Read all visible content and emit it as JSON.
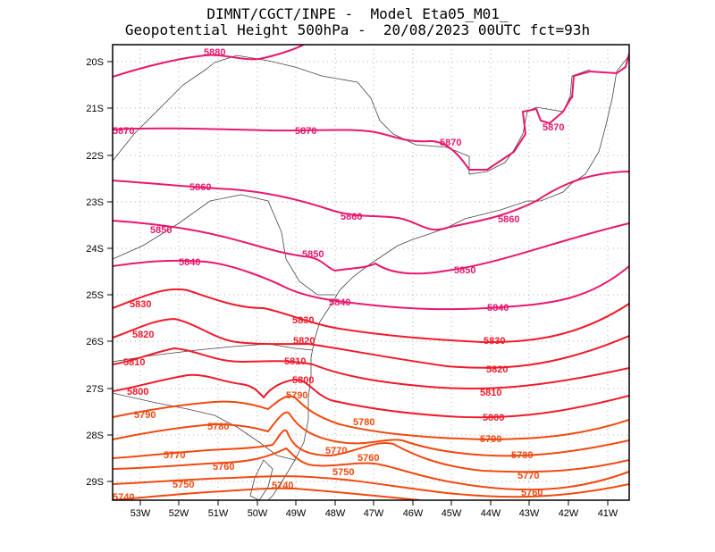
{
  "title": {
    "line1": "DIMNT/CGCT/INPE -  Model Eta05_M01_",
    "line2": "Geopotential Height 500hPa -  20/08/2023 00UTC fct=93h"
  },
  "axes": {
    "lat_labels": [
      "20S",
      "21S",
      "22S",
      "23S",
      "24S",
      "25S",
      "26S",
      "27S",
      "28S",
      "29S"
    ],
    "lon_labels": [
      "53W",
      "52W",
      "51W",
      "50W",
      "49W",
      "48W",
      "47W",
      "46W",
      "45W",
      "44W",
      "43W",
      "42W",
      "41W"
    ]
  },
  "colors": {
    "high": "#e8186e",
    "mid": "#f01a2a",
    "low": "#f04a10"
  },
  "contours": [
    {
      "value": 5880,
      "label": "5880"
    },
    {
      "value": 5870,
      "label": "5870"
    },
    {
      "value": 5860,
      "label": "5860"
    },
    {
      "value": 5850,
      "label": "5850"
    },
    {
      "value": 5840,
      "label": "5840"
    },
    {
      "value": 5830,
      "label": "5830"
    },
    {
      "value": 5820,
      "label": "5820"
    },
    {
      "value": 5810,
      "label": "5810"
    },
    {
      "value": 5800,
      "label": "5800"
    },
    {
      "value": 5790,
      "label": "5790"
    },
    {
      "value": 5780,
      "label": "5780"
    },
    {
      "value": 5770,
      "label": "5770"
    },
    {
      "value": 5760,
      "label": "5760"
    },
    {
      "value": 5750,
      "label": "5750"
    },
    {
      "value": 5740,
      "label": "5740"
    }
  ]
}
